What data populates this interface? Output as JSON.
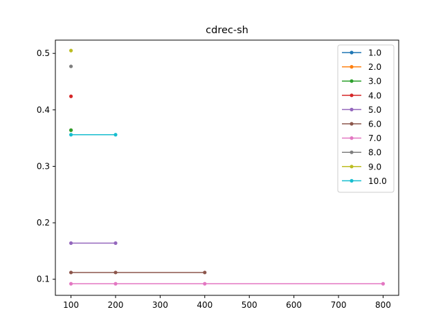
{
  "chart_data": {
    "type": "line",
    "title": "cdrec-sh",
    "xlabel": "",
    "ylabel": "",
    "xlim": [
      65,
      835
    ],
    "ylim": [
      0.0715,
      0.5235
    ],
    "xticks": [
      100,
      200,
      300,
      400,
      500,
      600,
      700,
      800
    ],
    "yticks": [
      0.1,
      0.2,
      0.3,
      0.4,
      0.5
    ],
    "ytick_labels": [
      "0.1",
      "0.2",
      "0.3",
      "0.4",
      "0.5"
    ],
    "grid": false,
    "legend_position": "upper-right",
    "series": [
      {
        "name": "1.0",
        "color": "#1f77b4",
        "points": [
          [
            100,
            0.364
          ]
        ]
      },
      {
        "name": "2.0",
        "color": "#ff7f0e",
        "points": [
          [
            100,
            0.364
          ]
        ]
      },
      {
        "name": "3.0",
        "color": "#2ca02c",
        "points": [
          [
            100,
            0.364
          ]
        ]
      },
      {
        "name": "4.0",
        "color": "#d62728",
        "points": [
          [
            100,
            0.424
          ]
        ]
      },
      {
        "name": "5.0",
        "color": "#9467bd",
        "points": [
          [
            100,
            0.164
          ],
          [
            200,
            0.164
          ]
        ]
      },
      {
        "name": "6.0",
        "color": "#8c564b",
        "points": [
          [
            100,
            0.112
          ],
          [
            200,
            0.112
          ],
          [
            400,
            0.112
          ]
        ]
      },
      {
        "name": "7.0",
        "color": "#e377c2",
        "points": [
          [
            100,
            0.092
          ],
          [
            200,
            0.092
          ],
          [
            400,
            0.092
          ],
          [
            800,
            0.092
          ]
        ]
      },
      {
        "name": "8.0",
        "color": "#7f7f7f",
        "points": [
          [
            100,
            0.477
          ]
        ]
      },
      {
        "name": "9.0",
        "color": "#bcbd22",
        "points": [
          [
            100,
            0.505
          ]
        ]
      },
      {
        "name": "10.0",
        "color": "#17becf",
        "points": [
          [
            100,
            0.356
          ],
          [
            200,
            0.356
          ]
        ]
      }
    ]
  }
}
